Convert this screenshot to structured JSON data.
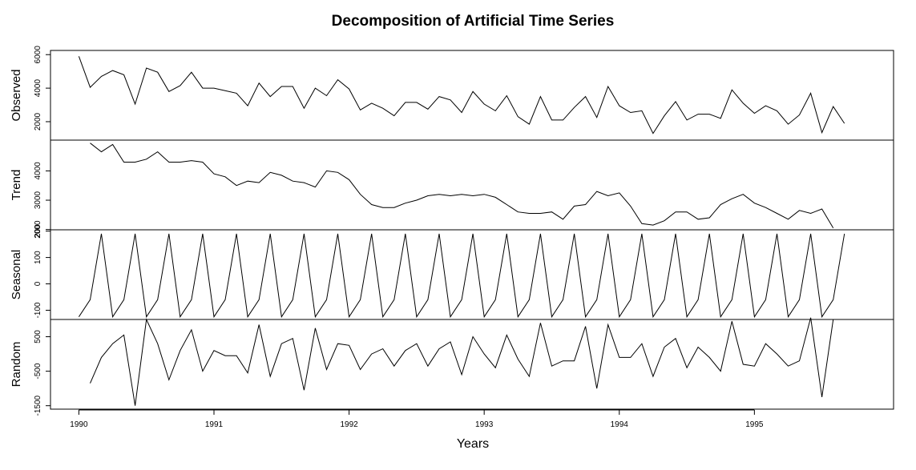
{
  "chart_data": {
    "type": "line",
    "title": "Decomposition of Artificial Time Series",
    "xlabel": "Years",
    "x_start": 1990.0,
    "x_step": 0.08333333,
    "xlim": [
      1989.79,
      1996.03
    ],
    "x_ticks": [
      1990,
      1991,
      1992,
      1993,
      1994,
      1995
    ],
    "panels": [
      {
        "name": "Observed",
        "ylim": [
          900,
          6250
        ],
        "y_ticks": [
          2000,
          4000,
          6000
        ],
        "values": [
          5900,
          4050,
          4700,
          5050,
          4800,
          3050,
          5200,
          4950,
          3800,
          4150,
          4950,
          4000,
          4000,
          3850,
          3700,
          2950,
          4300,
          3500,
          4100,
          4100,
          2800,
          4000,
          3550,
          4500,
          3950,
          2700,
          3100,
          2800,
          2350,
          3150,
          3150,
          2750,
          3500,
          3300,
          2550,
          3800,
          3050,
          2650,
          3550,
          2300,
          1850,
          3500,
          2100,
          2100,
          2850,
          3500,
          2250,
          4100,
          2950,
          2550,
          2650,
          1300,
          2350,
          3200,
          2100,
          2450,
          2450,
          2200,
          3900,
          3100,
          2500,
          2950,
          2650,
          1850,
          2400,
          3700,
          1350,
          2900,
          1900
        ]
      },
      {
        "name": "Trend",
        "ylim": [
          1990,
          5050
        ],
        "y_ticks": [
          2000,
          3000,
          4000
        ],
        "values": [
          null,
          4950,
          4650,
          4900,
          4300,
          4300,
          4400,
          4650,
          4300,
          4300,
          4350,
          4300,
          3900,
          3800,
          3500,
          3650,
          3600,
          3950,
          3850,
          3650,
          3600,
          3450,
          4000,
          3950,
          3700,
          3200,
          2850,
          2750,
          2750,
          2900,
          3000,
          3150,
          3200,
          3150,
          3200,
          3150,
          3200,
          3100,
          2850,
          2600,
          2550,
          2550,
          2600,
          2350,
          2800,
          2850,
          3300,
          3150,
          3250,
          2800,
          2200,
          2150,
          2300,
          2600,
          2600,
          2350,
          2400,
          2850,
          3050,
          3200,
          2900,
          2750,
          2550,
          2350,
          2650,
          2550,
          2700,
          2050,
          null
        ]
      },
      {
        "name": "Seasonal",
        "ylim": [
          -135,
          205
        ],
        "y_ticks": [
          -100,
          0,
          100,
          200
        ],
        "values": [
          -125,
          -60,
          190,
          -125,
          -60,
          190,
          -125,
          -60,
          190,
          -125,
          -60,
          190,
          -125,
          -60,
          190,
          -125,
          -60,
          190,
          -125,
          -60,
          190,
          -125,
          -60,
          190,
          -125,
          -60,
          190,
          -125,
          -60,
          190,
          -125,
          -60,
          190,
          -125,
          -60,
          190,
          -125,
          -60,
          190,
          -125,
          -60,
          190,
          -125,
          -60,
          190,
          -125,
          -60,
          190,
          -125,
          -60,
          190,
          -125,
          -60,
          190,
          -125,
          -60,
          190,
          -125,
          -60,
          190,
          -125,
          -60,
          190,
          -125,
          -60,
          190,
          -125,
          -60,
          190
        ]
      },
      {
        "name": "Random",
        "ylim": [
          -1600,
          1000
        ],
        "y_ticks": [
          -1500,
          -500,
          500
        ],
        "values": [
          null,
          -850,
          -100,
          300,
          550,
          -1500,
          1000,
          300,
          -750,
          100,
          700,
          -500,
          100,
          -50,
          -50,
          -550,
          850,
          -650,
          300,
          450,
          -1050,
          750,
          -450,
          300,
          250,
          -450,
          0,
          150,
          -350,
          100,
          300,
          -350,
          150,
          350,
          -600,
          500,
          0,
          -400,
          550,
          -150,
          -650,
          900,
          -350,
          -200,
          -200,
          800,
          -1000,
          850,
          -100,
          -100,
          300,
          -650,
          200,
          450,
          -400,
          200,
          -100,
          -500,
          950,
          -300,
          -350,
          300,
          0,
          -350,
          -200,
          1050,
          -1250,
          1000,
          null
        ]
      }
    ]
  }
}
